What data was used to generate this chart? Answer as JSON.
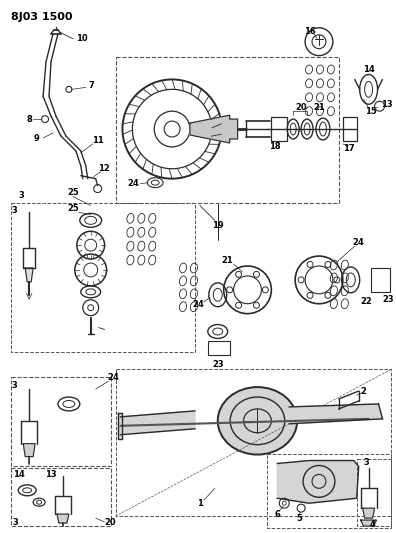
{
  "title": "8J03 1500",
  "bg_color": "#ffffff",
  "line_color": "#2a2a2a",
  "dashed_color": "#555555",
  "fig_width": 3.96,
  "fig_height": 5.33,
  "dpi": 100
}
